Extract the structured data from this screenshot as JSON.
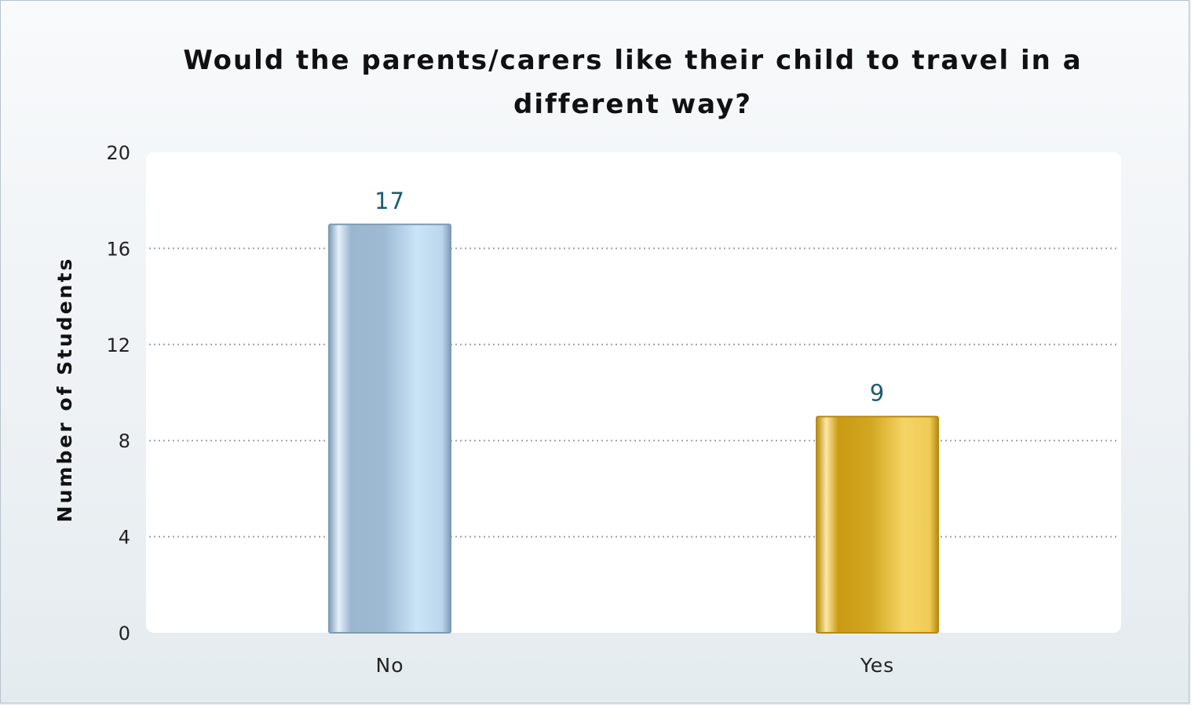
{
  "chart_data": {
    "type": "bar",
    "title": "Would the parents/carers like their child to travel in a different way?",
    "xlabel": "",
    "ylabel": "Number of Students",
    "categories": [
      "No",
      "Yes"
    ],
    "values": [
      17,
      9
    ],
    "data_labels": [
      "17",
      "9"
    ],
    "ylim": [
      0,
      20
    ],
    "yticks": [
      0,
      4,
      8,
      12,
      16,
      20
    ],
    "grid": true,
    "colors": {
      "No": [
        "#8fb0cb",
        "#c6e1f6",
        "#7f9bb5"
      ],
      "Yes": [
        "#c99a12",
        "#f4d264",
        "#b88a10"
      ]
    }
  }
}
